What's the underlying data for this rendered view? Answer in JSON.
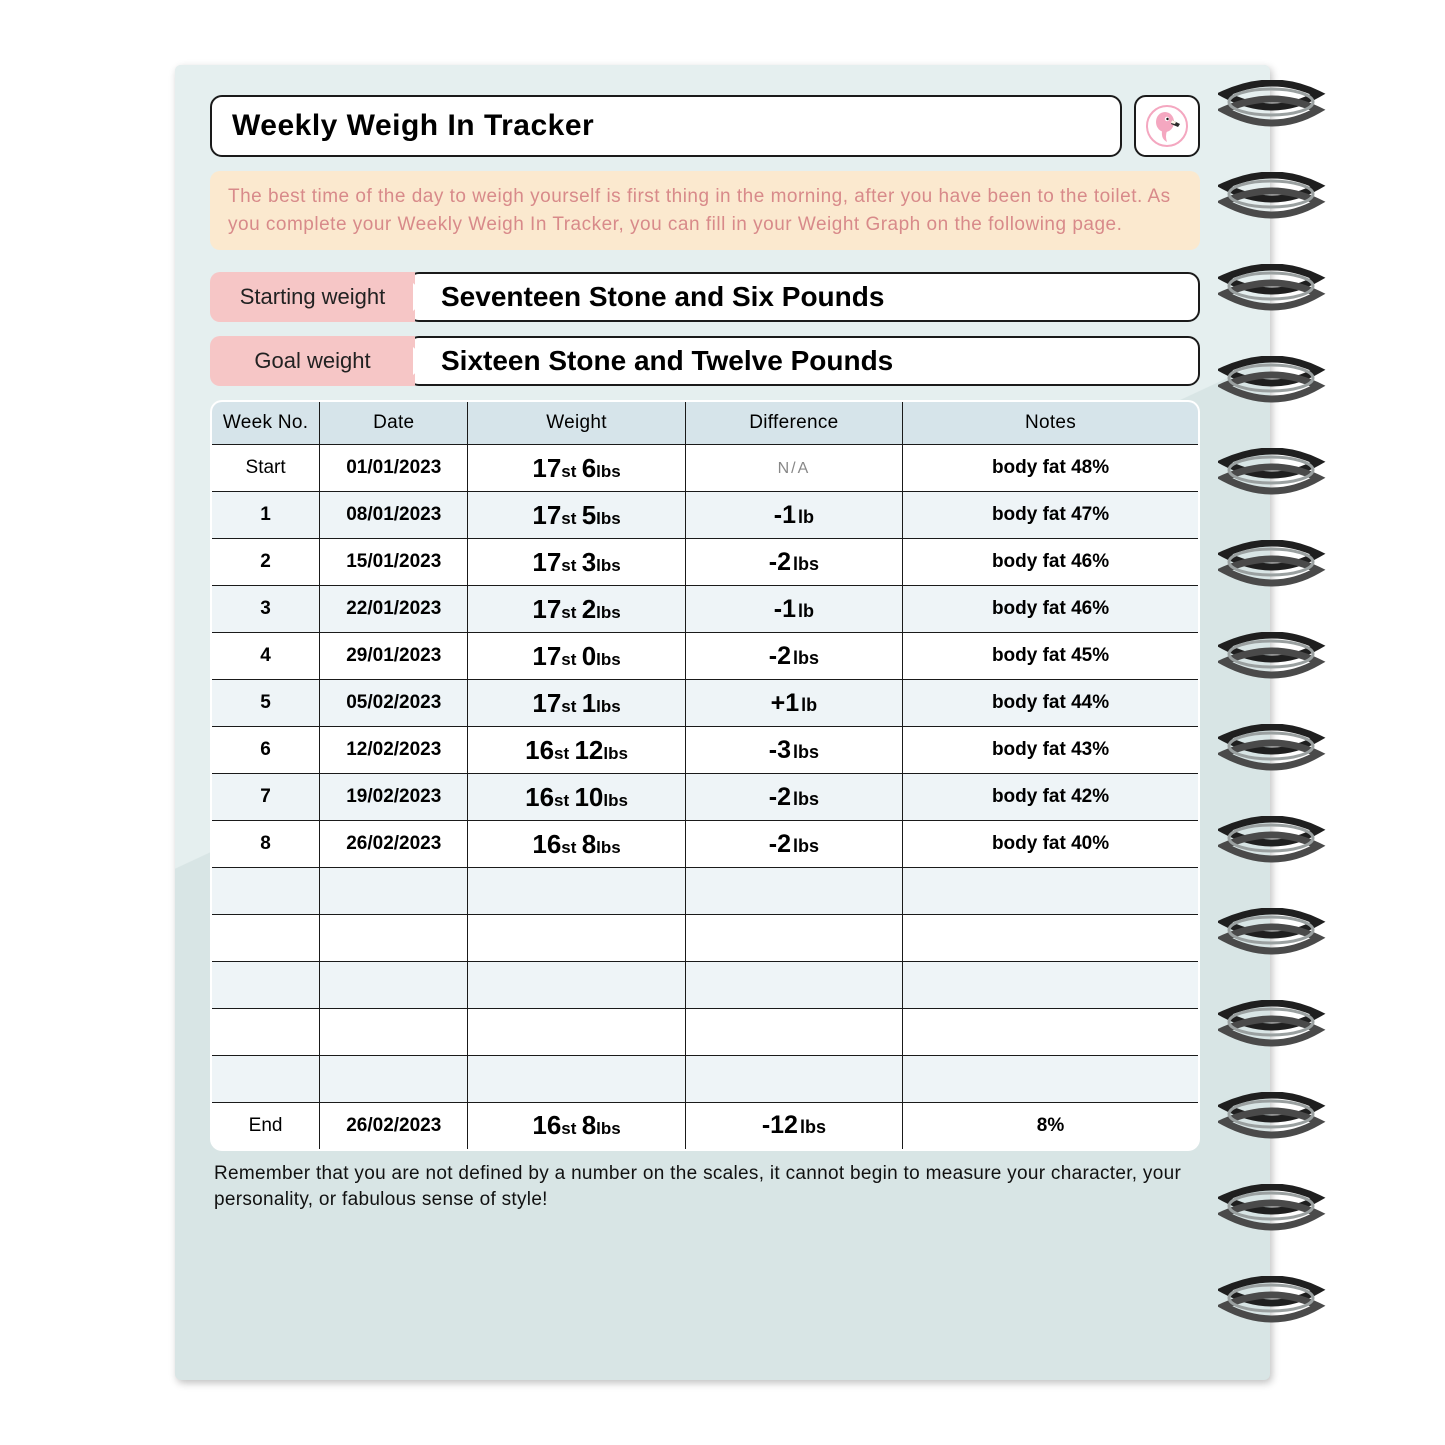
{
  "colors": {
    "page_bg_light": "#e5efef",
    "page_bg_dark": "#d8e5e5",
    "tip_bg": "#fbe9cf",
    "tip_text": "#d88a8a",
    "label_bg": "#f6c6c6",
    "table_header_bg": "#d6e4ea",
    "table_alt_row": "#eef4f7",
    "border": "#1a1a1a",
    "flamingo_pink": "#f4a7c0",
    "flamingo_beak": "#2b2b2b"
  },
  "typography": {
    "title_fontsize": 30,
    "tip_fontsize": 19,
    "label_fontsize": 22,
    "value_fontsize": 28,
    "header_fontsize": 19,
    "footer_fontsize": 19
  },
  "header": {
    "title": "Weekly Weigh In Tracker",
    "icon": "flamingo-icon"
  },
  "tip": "The best time of the day to weigh yourself is first thing in the morning, after you have been to the toilet. As you complete your Weekly Weigh In Tracker, you can fill in your Weight Graph on the following page.",
  "weights": {
    "starting_label": "Starting weight",
    "starting_value": "Seventeen Stone and Six Pounds",
    "goal_label": "Goal weight",
    "goal_value": "Sixteen Stone and Twelve Pounds"
  },
  "table": {
    "columns": [
      "Week No.",
      "Date",
      "Weight",
      "Difference",
      "Notes"
    ],
    "column_widths_pct": [
      11,
      15,
      22,
      22,
      30
    ],
    "rows": [
      {
        "week": "Start",
        "week_bold": false,
        "date": "01/01/2023",
        "weight_st": "17",
        "weight_lb": "6",
        "diff": "N/A",
        "diff_na": true,
        "notes": "body fat 48%"
      },
      {
        "week": "1",
        "week_bold": true,
        "date": "08/01/2023",
        "weight_st": "17",
        "weight_lb": "5",
        "diff_num": "-1",
        "diff_unit": "lb",
        "notes": "body fat 47%"
      },
      {
        "week": "2",
        "week_bold": true,
        "date": "15/01/2023",
        "weight_st": "17",
        "weight_lb": "3",
        "diff_num": "-2",
        "diff_unit": "lbs",
        "notes": "body fat 46%"
      },
      {
        "week": "3",
        "week_bold": true,
        "date": "22/01/2023",
        "weight_st": "17",
        "weight_lb": "2",
        "diff_num": "-1",
        "diff_unit": "lb",
        "notes": "body fat 46%"
      },
      {
        "week": "4",
        "week_bold": true,
        "date": "29/01/2023",
        "weight_st": "17",
        "weight_lb": "0",
        "diff_num": "-2",
        "diff_unit": "lbs",
        "notes": "body fat 45%"
      },
      {
        "week": "5",
        "week_bold": true,
        "date": "05/02/2023",
        "weight_st": "17",
        "weight_lb": "1",
        "diff_num": "+1",
        "diff_unit": "lb",
        "notes": "body fat 44%"
      },
      {
        "week": "6",
        "week_bold": true,
        "date": "12/02/2023",
        "weight_st": "16",
        "weight_lb": "12",
        "diff_num": "-3",
        "diff_unit": "lbs",
        "notes": "body fat 43%"
      },
      {
        "week": "7",
        "week_bold": true,
        "date": "19/02/2023",
        "weight_st": "16",
        "weight_lb": "10",
        "diff_num": "-2",
        "diff_unit": "lbs",
        "notes": "body fat 42%"
      },
      {
        "week": "8",
        "week_bold": true,
        "date": "26/02/2023",
        "weight_st": "16",
        "weight_lb": "8",
        "diff_num": "-2",
        "diff_unit": "lbs",
        "notes": "body fat 40%"
      },
      {
        "empty": true
      },
      {
        "empty": true
      },
      {
        "empty": true
      },
      {
        "empty": true
      },
      {
        "empty": true
      },
      {
        "week": "End",
        "week_bold": false,
        "date": "26/02/2023",
        "weight_st": "16",
        "weight_lb": "8",
        "diff_num": "-12",
        "diff_unit": "lbs",
        "notes": "8%"
      }
    ]
  },
  "footer": "Remember that you are not defined by a number on the scales, it cannot begin to measure your character, your personality, or fabulous sense of style!",
  "spiral": {
    "ring_count": 14
  }
}
